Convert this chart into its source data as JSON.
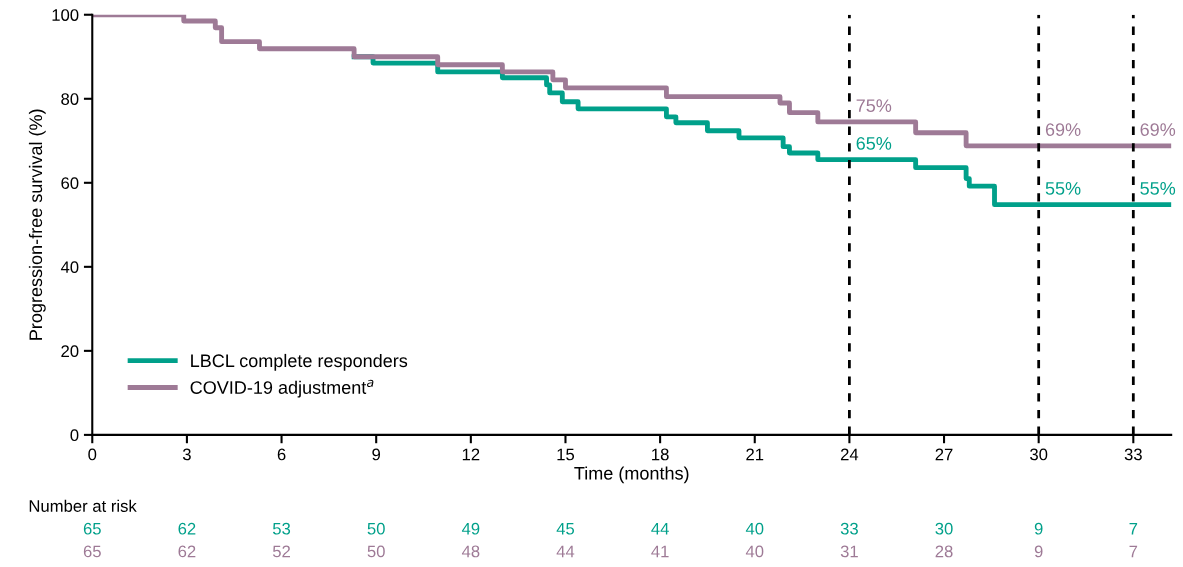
{
  "chart_data": {
    "type": "step",
    "xlabel": "Time (months)",
    "ylabel": "Progression-free survival (%)",
    "xlim": [
      0,
      34.2
    ],
    "ylim": [
      0,
      100
    ],
    "xticks": [
      0,
      3,
      6,
      9,
      12,
      15,
      18,
      21,
      24,
      27,
      30,
      33
    ],
    "yticks": [
      0,
      20,
      40,
      60,
      80,
      100
    ],
    "grid": false,
    "legend": "bottom left",
    "line_style": "solid",
    "series": [
      {
        "name": "LBCL complete responders",
        "color": "#00a08a",
        "x": [
          8.3,
          8.9,
          10.95,
          13.0,
          14.4,
          14.5,
          14.9,
          15.4,
          18.2,
          18.5,
          19.5,
          20.5,
          21.9,
          22.1,
          23.0,
          26.1,
          27.7,
          27.8,
          28.6,
          34.2
        ],
        "values": [
          90.0,
          88.5,
          86.4,
          85.0,
          83.3,
          81.4,
          79.3,
          77.6,
          75.7,
          74.3,
          72.4,
          70.7,
          68.6,
          67.1,
          65.5,
          63.6,
          61.0,
          59.2,
          54.8,
          54.8
        ]
      },
      {
        "name": "COVID-19 adjustment$^{a}$",
        "color": "#9e7a96",
        "x": [
          0,
          2.9,
          3.9,
          4.1,
          5.3,
          8.3,
          10.95,
          13.0,
          14.6,
          15.0,
          18.2,
          21.8,
          22.1,
          23.0,
          26.1,
          27.7,
          34.2
        ],
        "values": [
          100,
          98.5,
          96.9,
          93.6,
          91.9,
          90.0,
          88.1,
          86.4,
          84.5,
          82.6,
          80.5,
          79.0,
          76.7,
          74.5,
          71.9,
          68.8,
          68.8
        ]
      }
    ],
    "ref_lines": [
      {
        "axis": "x",
        "value": 24,
        "color": "#000000",
        "line_style": "dashed"
      },
      {
        "axis": "x",
        "value": 30,
        "color": "#000000",
        "line_style": "dashed"
      },
      {
        "axis": "x",
        "value": 33,
        "color": "#000000",
        "line_style": "dashed"
      }
    ],
    "annotations": [
      {
        "text": "75%",
        "x": 24,
        "y": 74.5
      },
      {
        "text": "65%",
        "x": 24,
        "y": 65.5
      },
      {
        "text": "69%",
        "x": 30,
        "y": 68.8
      },
      {
        "text": "55%",
        "x": 30,
        "y": 54.8
      },
      {
        "text": "69%",
        "x": 33,
        "y": 68.8
      },
      {
        "text": "55%",
        "x": 33,
        "y": 54.8
      },
      "Number at risk",
      "65",
      "62",
      "53",
      "50",
      "49",
      "45",
      "44",
      "40",
      "33",
      "30",
      "9",
      "7",
      "65",
      "62",
      "52",
      "50",
      "48",
      "44",
      "41",
      "40",
      "31",
      "28",
      "9",
      "7"
    ]
  }
}
